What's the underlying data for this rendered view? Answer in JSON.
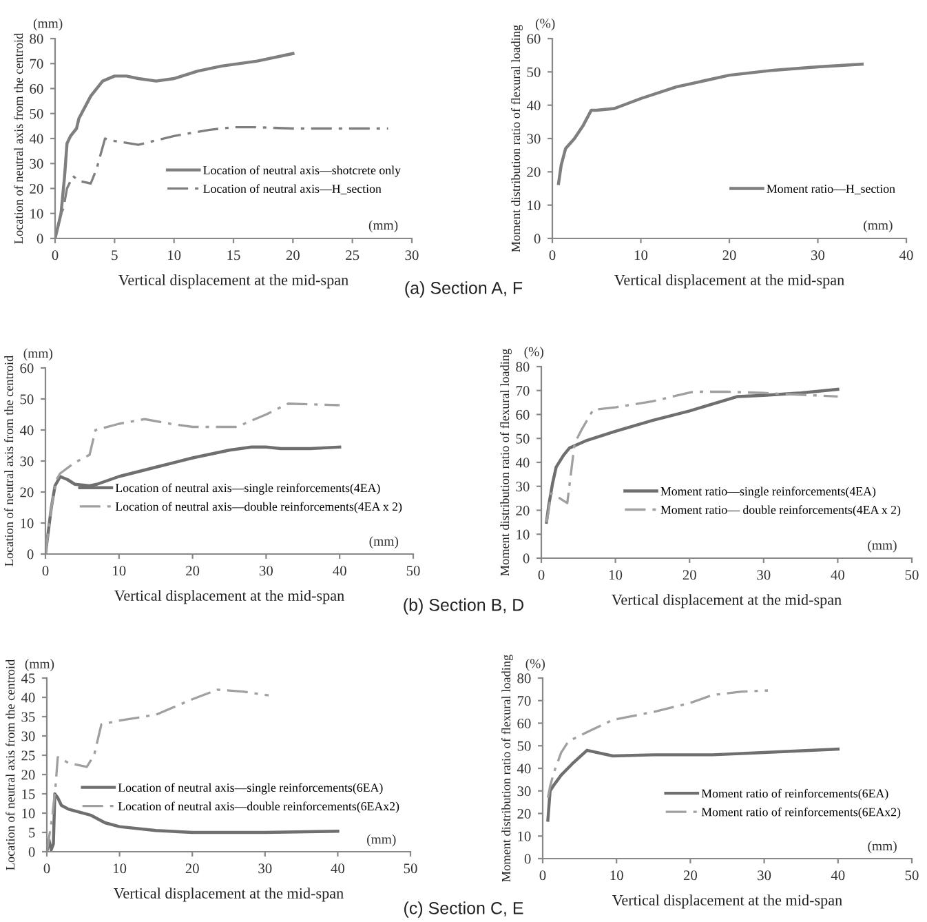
{
  "chart_data": [
    {
      "type": "line",
      "xlabel": "Vertical displacement at the mid-span",
      "ylabel": "Location of neutral axis from the centroid",
      "xlim": [
        0,
        30
      ],
      "xticks": [
        0,
        5,
        10,
        15,
        20,
        25,
        30
      ],
      "ylim": [
        0,
        80
      ],
      "yticks": [
        0,
        10,
        20,
        30,
        40,
        50,
        60,
        70,
        80
      ],
      "grid": false,
      "legend": "lower right",
      "annotations": [
        "(mm)",
        "(mm)",
        "(a) Section A, F"
      ],
      "series": [
        {
          "name": "Location of neutral axis—shotcrete only",
          "color": "#7f7f7f",
          "line_style": "solid",
          "x": [
            0,
            0.5,
            0.8,
            1.0,
            1.3,
            1.8,
            2,
            3,
            4,
            5,
            6,
            7,
            8.5,
            10,
            12,
            14,
            17,
            20
          ],
          "values": [
            0,
            10,
            25,
            38,
            41,
            44,
            48,
            57,
            63,
            65,
            65,
            64,
            63,
            64,
            67,
            69,
            71,
            74
          ]
        },
        {
          "name": "Location of neutral axis—H_section",
          "color": "#7f7f7f",
          "line_style": "dashed",
          "x": [
            0,
            0.5,
            0.7,
            1,
            1.5,
            2,
            3,
            3.5,
            4.2,
            5,
            7,
            10,
            13,
            15,
            17,
            20,
            28
          ],
          "values": [
            0,
            10,
            12,
            20,
            25,
            23,
            22,
            28,
            40,
            39,
            37.5,
            41,
            43.5,
            44.5,
            44.5,
            44,
            44
          ]
        }
      ]
    },
    {
      "type": "line",
      "xlabel": "Vertical displacement at the mid-span",
      "ylabel": "Moment distribution ratio of flexural loading",
      "xlim": [
        0,
        40
      ],
      "xticks": [
        0,
        10,
        20,
        30,
        40
      ],
      "ylim": [
        0,
        60
      ],
      "yticks": [
        0,
        10,
        20,
        30,
        40,
        50,
        60
      ],
      "grid": false,
      "legend": "lower right",
      "annotations": [
        "(%)",
        "(mm)"
      ],
      "series": [
        {
          "name": "Moment ratio—H_section",
          "color": "#7f7f7f",
          "line_style": "solid",
          "x": [
            0.7,
            1,
            1.5,
            2.5,
            3.5,
            4.4,
            5,
            7,
            10,
            14,
            20,
            25,
            30,
            35
          ],
          "values": [
            16.5,
            22,
            27,
            30,
            34,
            38.5,
            38.5,
            39,
            42,
            45.5,
            49,
            50.5,
            51.5,
            52.3
          ]
        }
      ]
    },
    {
      "type": "line",
      "xlabel": "Vertical displacement at the mid-span",
      "ylabel": "Location of neutral axis from the centroid",
      "xlim": [
        0,
        50
      ],
      "xticks": [
        0,
        10,
        20,
        30,
        40,
        50
      ],
      "ylim": [
        0,
        60
      ],
      "yticks": [
        0,
        10,
        20,
        30,
        40,
        50,
        60
      ],
      "grid": false,
      "legend": "lower right",
      "annotations": [
        "(mm)",
        "(mm)",
        "(b) Section B, D"
      ],
      "series": [
        {
          "name": "Location of neutral axis—single reinforcements(4EA)",
          "color": "#6f6f6f",
          "line_style": "solid",
          "x": [
            0,
            0.8,
            1.3,
            2,
            3,
            4,
            6,
            7,
            10,
            15,
            20,
            25,
            28,
            30,
            32,
            36,
            40
          ],
          "values": [
            0,
            15,
            22,
            25,
            24,
            22.5,
            22,
            22.5,
            25,
            28,
            31,
            33.5,
            34.5,
            34.5,
            34,
            34,
            34.5
          ]
        },
        {
          "name": "Location of neutral axis—double reinforcements(4EA x 2)",
          "color": "#a0a0a0",
          "line_style": "dashed",
          "x": [
            0,
            0.8,
            1.5,
            2,
            4,
            6,
            6.8,
            10,
            13.5,
            17,
            20,
            26,
            28,
            30,
            33,
            37,
            40
          ],
          "values": [
            0,
            15,
            24,
            26,
            29.5,
            32,
            40,
            42,
            43.5,
            42,
            41,
            41,
            43,
            45,
            48.5,
            48.2,
            48
          ]
        }
      ]
    },
    {
      "type": "line",
      "xlabel": "Vertical displacement at the mid-span",
      "ylabel": "Moment distribution ratio of flexural loading",
      "xlim": [
        0,
        50
      ],
      "xticks": [
        0,
        10,
        20,
        30,
        40,
        50
      ],
      "ylim": [
        0,
        80
      ],
      "yticks": [
        0,
        10,
        20,
        30,
        40,
        50,
        60,
        70,
        80
      ],
      "grid": false,
      "legend": "lower right",
      "annotations": [
        "(%)",
        "(mm)"
      ],
      "series": [
        {
          "name": "Moment ratio—single reinforcements(4EA)",
          "color": "#6f6f6f",
          "line_style": "solid",
          "x": [
            0.7,
            1,
            1.5,
            2,
            3,
            3.8,
            6,
            10,
            15,
            20,
            26.5,
            30,
            35,
            40
          ],
          "values": [
            15,
            22,
            31,
            38,
            43,
            46,
            49,
            53,
            57.5,
            61.5,
            67.5,
            68,
            69,
            70.5
          ]
        },
        {
          "name": "Moment ratio— double reinforcements(4EA x 2)",
          "color": "#a0a0a0",
          "line_style": "dashed",
          "x": [
            0.7,
            1,
            1.3,
            2,
            3.5,
            4.5,
            5.5,
            7,
            10,
            15,
            20.5,
            25,
            30,
            40
          ],
          "values": [
            15,
            20,
            27,
            26,
            23,
            48,
            54,
            62,
            63,
            65.5,
            69.5,
            69.5,
            69,
            67.5
          ]
        }
      ]
    },
    {
      "type": "line",
      "xlabel": "Vertical displacement at the mid-span",
      "ylabel": "Location of neutral axis from the centroid",
      "xlim": [
        0,
        50
      ],
      "xticks": [
        0,
        10,
        20,
        30,
        40,
        50
      ],
      "ylim": [
        0,
        45
      ],
      "yticks": [
        0,
        5,
        10,
        15,
        20,
        25,
        30,
        35,
        40,
        45
      ],
      "grid": false,
      "legend": "lower right",
      "annotations": [
        "(mm)",
        "(mm)",
        "(c) Section C, E"
      ],
      "series": [
        {
          "name": "Location of neutral axis—single reinforcements(6EA)",
          "color": "#6f6f6f",
          "line_style": "solid",
          "x": [
            0,
            0.3,
            0.6,
            0.9,
            1.1,
            1.5,
            2,
            3,
            6,
            8,
            10,
            15,
            20,
            30,
            40
          ],
          "values": [
            0,
            3,
            0.5,
            2,
            15,
            14,
            12,
            11,
            9.5,
            7.5,
            6.5,
            5.5,
            5,
            5,
            5.3
          ]
        },
        {
          "name": "Location of neutral axis—double reinforcements(6EAx2)",
          "color": "#a0a0a0",
          "line_style": "dashed",
          "x": [
            0,
            0.5,
            0.8,
            1.2,
            1.5,
            2,
            3,
            5.5,
            6.5,
            7.5,
            10,
            15,
            20,
            23.5,
            27,
            30.5
          ],
          "values": [
            0,
            6,
            10,
            17,
            24.5,
            24,
            23,
            22,
            25,
            33,
            34,
            35.5,
            39.5,
            42,
            41.5,
            40.5
          ]
        }
      ]
    },
    {
      "type": "line",
      "xlabel": "Vertical displacement at the mid-span",
      "ylabel": "Moment distribution ratio of flexural loading",
      "xlim": [
        0,
        50
      ],
      "xticks": [
        0,
        10,
        20,
        30,
        40,
        50
      ],
      "ylim": [
        0,
        80
      ],
      "yticks": [
        0,
        10,
        20,
        30,
        40,
        50,
        60,
        70,
        80
      ],
      "grid": false,
      "legend": "lower right",
      "annotations": [
        "(%)",
        "(mm)"
      ],
      "series": [
        {
          "name": "Moment ratio of reinforcements(6EA)",
          "color": "#6f6f6f",
          "line_style": "solid",
          "x": [
            0.7,
            1,
            1.5,
            2.5,
            4,
            6,
            9.5,
            15,
            23,
            30,
            40
          ],
          "values": [
            17,
            30,
            32.5,
            37,
            42,
            48,
            45.5,
            46,
            46,
            47,
            48.5
          ]
        },
        {
          "name": "Moment ratio of reinforcements(6EAx2)",
          "color": "#a0a0a0",
          "line_style": "dashed",
          "x": [
            0.7,
            1,
            1.5,
            2.5,
            3.5,
            6,
            9.5,
            15,
            20,
            23,
            27,
            30.5
          ],
          "values": [
            27,
            32,
            38,
            47,
            52,
            56,
            61.5,
            65,
            69,
            72.5,
            74,
            74.5
          ]
        }
      ]
    }
  ]
}
